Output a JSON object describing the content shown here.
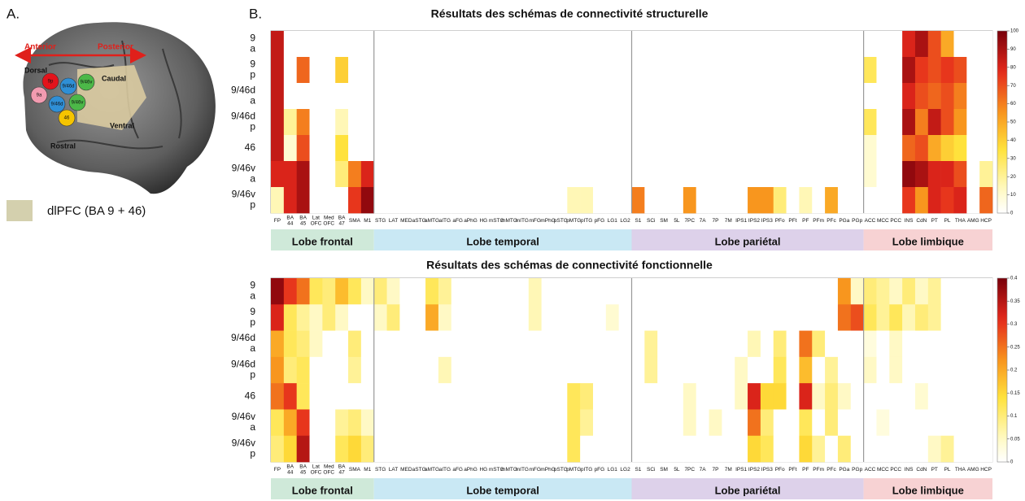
{
  "panel_a": {
    "label": "A.",
    "anterior": "Anterior",
    "posterior": "Posterior",
    "dorsal": "Dorsal",
    "caudal": "Caudal",
    "ventral": "Ventral",
    "rostral": "Rostral",
    "areas": [
      "9p",
      "9a",
      "9/46d",
      "9/46v",
      "9/46d",
      "9/46v",
      "46"
    ],
    "legend": "dlPFC (BA 9 + 46)"
  },
  "panel_b_label": "B.",
  "chart_data": [
    {
      "type": "heatmap",
      "title": "Résultats des schémas de connectivité structurelle",
      "y_categories": [
        "9 a",
        "9 p",
        "9/46d a",
        "9/46d p",
        "46",
        "9/46v a",
        "9/46v p"
      ],
      "groups": [
        {
          "name": "Lobe frontal",
          "color": "#cfe9d9",
          "categories": [
            "FP",
            "BA 44",
            "BA 45",
            "Lat OFC",
            "Med OFC",
            "BA 47",
            "SMA",
            "M1"
          ]
        },
        {
          "name": "Lobe temporal",
          "color": "#c9e8f4",
          "categories": [
            "STG",
            "LAT",
            "MED",
            "aSTG",
            "aMTG",
            "aITG",
            "aFG",
            "aPhG",
            "HG",
            "mSTG",
            "mMTG",
            "mITG",
            "mFG",
            "mPhG",
            "pSTG",
            "pMTG",
            "pITG",
            "pFG",
            "LG1",
            "LG2"
          ]
        },
        {
          "name": "Lobe pariétal",
          "color": "#ddd1ea",
          "categories": [
            "S1",
            "SCi",
            "SM",
            "5L",
            "7PC",
            "7A",
            "7P",
            "7M",
            "IPS1",
            "IPS2",
            "IPS3",
            "PFo",
            "PFt",
            "PF",
            "PFm",
            "PFc",
            "PGa",
            "PGp"
          ]
        },
        {
          "name": "Lobe limbique",
          "color": "#f7d2d3",
          "categories": [
            "ACC",
            "MCC",
            "PCC",
            "INS",
            "CdN",
            "PT",
            "PL",
            "THA",
            "AMG",
            "HCP"
          ]
        }
      ],
      "values": [
        [
          85,
          0,
          0,
          0,
          0,
          0,
          0,
          0,
          0,
          0,
          0,
          0,
          0,
          0,
          0,
          0,
          0,
          0,
          0,
          0,
          0,
          0,
          0,
          0,
          0,
          0,
          0,
          0,
          0,
          0,
          0,
          0,
          0,
          0,
          0,
          0,
          0,
          0,
          0,
          0,
          0,
          0,
          0,
          0,
          0,
          0,
          0,
          0,
          0,
          80,
          90,
          70,
          50,
          0,
          0,
          0
        ],
        [
          85,
          0,
          65,
          0,
          0,
          40,
          0,
          0,
          0,
          0,
          0,
          0,
          0,
          0,
          0,
          0,
          0,
          0,
          0,
          0,
          0,
          0,
          0,
          0,
          0,
          0,
          0,
          0,
          0,
          0,
          0,
          0,
          0,
          0,
          0,
          0,
          0,
          0,
          0,
          0,
          0,
          0,
          0,
          0,
          0,
          0,
          30,
          0,
          0,
          90,
          75,
          70,
          75,
          70,
          0,
          0
        ],
        [
          85,
          0,
          0,
          0,
          0,
          0,
          0,
          0,
          0,
          0,
          0,
          0,
          0,
          0,
          0,
          0,
          0,
          0,
          0,
          0,
          0,
          0,
          0,
          0,
          0,
          0,
          0,
          0,
          0,
          0,
          0,
          0,
          0,
          0,
          0,
          0,
          0,
          0,
          0,
          0,
          0,
          0,
          0,
          0,
          0,
          0,
          0,
          0,
          0,
          80,
          70,
          65,
          70,
          60,
          0,
          0
        ],
        [
          85,
          20,
          60,
          0,
          0,
          15,
          0,
          0,
          0,
          0,
          0,
          0,
          0,
          0,
          0,
          0,
          0,
          0,
          0,
          0,
          0,
          0,
          0,
          0,
          0,
          0,
          0,
          0,
          0,
          0,
          0,
          0,
          0,
          0,
          0,
          0,
          0,
          0,
          0,
          0,
          0,
          0,
          0,
          0,
          0,
          0,
          30,
          0,
          0,
          90,
          60,
          85,
          70,
          55,
          0,
          0
        ],
        [
          85,
          10,
          70,
          0,
          0,
          35,
          0,
          0,
          0,
          0,
          0,
          0,
          0,
          0,
          0,
          0,
          0,
          0,
          0,
          0,
          0,
          0,
          0,
          0,
          0,
          0,
          0,
          0,
          0,
          0,
          0,
          0,
          0,
          0,
          0,
          0,
          0,
          0,
          0,
          0,
          0,
          0,
          0,
          0,
          0,
          0,
          10,
          0,
          0,
          65,
          70,
          50,
          40,
          35,
          0,
          0
        ],
        [
          80,
          80,
          90,
          0,
          0,
          25,
          60,
          80,
          0,
          0,
          0,
          0,
          0,
          0,
          0,
          0,
          0,
          0,
          0,
          0,
          0,
          0,
          0,
          0,
          0,
          0,
          0,
          0,
          0,
          0,
          0,
          0,
          0,
          0,
          0,
          0,
          0,
          0,
          0,
          0,
          0,
          0,
          0,
          0,
          0,
          0,
          10,
          0,
          0,
          95,
          90,
          80,
          80,
          70,
          0,
          20
        ],
        [
          15,
          80,
          90,
          0,
          0,
          0,
          75,
          95,
          0,
          0,
          0,
          0,
          0,
          0,
          0,
          0,
          0,
          0,
          0,
          0,
          0,
          0,
          0,
          15,
          15,
          0,
          0,
          0,
          60,
          0,
          0,
          0,
          55,
          0,
          0,
          0,
          0,
          55,
          55,
          25,
          0,
          15,
          0,
          50,
          0,
          0,
          0,
          0,
          0,
          75,
          55,
          80,
          75,
          80,
          0,
          65
        ]
      ],
      "clim": [
        0,
        100
      ],
      "cticks": [
        0,
        10,
        20,
        30,
        40,
        50,
        60,
        70,
        80,
        90,
        100
      ]
    },
    {
      "type": "heatmap",
      "title": "Résultats des schémas de connectivité fonctionnelle",
      "y_categories": [
        "9 a",
        "9 p",
        "9/46d a",
        "9/46d p",
        "46",
        "9/46v a",
        "9/46v p"
      ],
      "groups": [
        {
          "name": "Lobe frontal",
          "color": "#cfe9d9",
          "categories": [
            "FP",
            "BA 44",
            "BA 45",
            "Lat OFC",
            "Med OFC",
            "BA 47",
            "SMA",
            "M1"
          ]
        },
        {
          "name": "Lobe temporal",
          "color": "#c9e8f4",
          "categories": [
            "STG",
            "LAT",
            "MED",
            "aSTG",
            "aMTG",
            "aITG",
            "aFG",
            "aPhG",
            "HG",
            "mSTG",
            "mMTG",
            "mITG",
            "mFG",
            "mPhG",
            "pSTG",
            "pMTG",
            "pITG",
            "pFG",
            "LG1",
            "LG2"
          ]
        },
        {
          "name": "Lobe pariétal",
          "color": "#ddd1ea",
          "categories": [
            "S1",
            "SCi",
            "SM",
            "5L",
            "7PC",
            "7A",
            "7P",
            "7M",
            "IPS1",
            "IPS2",
            "IPS3",
            "PFo",
            "PFt",
            "PF",
            "PFm",
            "PFc",
            "PGa",
            "PGp"
          ]
        },
        {
          "name": "Lobe limbique",
          "color": "#f7d2d3",
          "categories": [
            "ACC",
            "MCC",
            "PCC",
            "INS",
            "CdN",
            "PT",
            "PL",
            "THA",
            "AMG",
            "HCP"
          ]
        }
      ],
      "values": [
        [
          0.38,
          0.3,
          0.25,
          0.12,
          0.1,
          0.18,
          0.12,
          0.05,
          0.1,
          0.05,
          0,
          0,
          0.12,
          0.08,
          0,
          0,
          0,
          0,
          0,
          0,
          0.06,
          0,
          0,
          0,
          0,
          0,
          0,
          0,
          0,
          0,
          0,
          0,
          0,
          0,
          0,
          0,
          0,
          0,
          0,
          0,
          0,
          0,
          0,
          0,
          0.22,
          0.05,
          0.1,
          0.08,
          0.05,
          0.1,
          0.05,
          0.08,
          0,
          0,
          0,
          0
        ],
        [
          0.32,
          0.12,
          0.08,
          0.05,
          0.1,
          0.05,
          0,
          0,
          0.05,
          0.1,
          0,
          0,
          0.2,
          0.05,
          0,
          0,
          0,
          0,
          0,
          0,
          0.06,
          0,
          0,
          0,
          0,
          0,
          0.04,
          0,
          0,
          0,
          0,
          0,
          0,
          0,
          0,
          0,
          0,
          0,
          0,
          0,
          0,
          0,
          0,
          0,
          0.25,
          0.28,
          0.12,
          0.08,
          0.12,
          0.06,
          0.1,
          0.08,
          0,
          0,
          0,
          0
        ],
        [
          0.2,
          0.12,
          0.1,
          0.05,
          0,
          0,
          0.1,
          0,
          0,
          0,
          0,
          0,
          0,
          0,
          0,
          0,
          0,
          0,
          0,
          0,
          0,
          0,
          0,
          0,
          0,
          0,
          0,
          0,
          0,
          0.08,
          0,
          0,
          0,
          0,
          0,
          0,
          0,
          0.06,
          0,
          0.1,
          0,
          0.25,
          0.1,
          0,
          0,
          0,
          0.03,
          0,
          0.05,
          0,
          0,
          0,
          0,
          0,
          0,
          0
        ],
        [
          0.22,
          0.1,
          0.12,
          0,
          0,
          0,
          0.08,
          0,
          0,
          0,
          0,
          0,
          0,
          0.06,
          0,
          0,
          0,
          0,
          0,
          0,
          0,
          0,
          0,
          0,
          0,
          0,
          0,
          0,
          0,
          0.08,
          0,
          0,
          0,
          0,
          0,
          0,
          0.05,
          0,
          0,
          0.12,
          0,
          0.18,
          0,
          0.08,
          0,
          0,
          0.05,
          0,
          0.05,
          0,
          0,
          0,
          0,
          0,
          0,
          0
        ],
        [
          0.25,
          0.3,
          0.12,
          0,
          0,
          0,
          0,
          0,
          0,
          0,
          0,
          0,
          0,
          0,
          0,
          0,
          0,
          0,
          0,
          0,
          0,
          0,
          0,
          0.12,
          0.1,
          0,
          0,
          0,
          0,
          0,
          0,
          0,
          0.05,
          0,
          0,
          0,
          0.05,
          0.32,
          0.15,
          0.15,
          0,
          0.32,
          0.05,
          0.1,
          0.05,
          0,
          0,
          0,
          0,
          0,
          0.04,
          0,
          0,
          0,
          0,
          0
        ],
        [
          0.12,
          0.2,
          0.3,
          0,
          0,
          0.08,
          0.1,
          0.05,
          0,
          0,
          0,
          0,
          0,
          0,
          0,
          0,
          0,
          0,
          0,
          0,
          0,
          0,
          0,
          0.12,
          0.08,
          0,
          0,
          0,
          0,
          0,
          0,
          0,
          0.05,
          0,
          0.05,
          0,
          0,
          0.25,
          0.1,
          0,
          0,
          0.12,
          0,
          0.1,
          0,
          0,
          0,
          0.03,
          0,
          0,
          0,
          0,
          0,
          0,
          0,
          0
        ],
        [
          0.1,
          0.15,
          0.35,
          0,
          0,
          0.12,
          0.15,
          0.1,
          0,
          0,
          0,
          0,
          0,
          0,
          0,
          0,
          0,
          0,
          0,
          0,
          0,
          0,
          0,
          0.12,
          0,
          0,
          0,
          0,
          0,
          0,
          0,
          0,
          0,
          0,
          0,
          0,
          0,
          0.15,
          0.12,
          0,
          0,
          0.15,
          0.08,
          0,
          0.1,
          0,
          0,
          0,
          0,
          0,
          0,
          0.05,
          0.08,
          0,
          0,
          0
        ]
      ],
      "clim": [
        0,
        0.4
      ],
      "cticks": [
        0,
        0.05,
        0.1,
        0.15,
        0.2,
        0.25,
        0.3,
        0.35,
        0.4
      ]
    }
  ]
}
